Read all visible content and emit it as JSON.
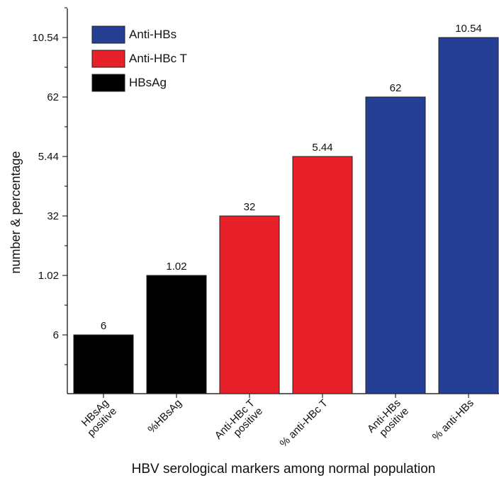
{
  "chart_data": {
    "type": "bar",
    "x_label": "HBV serological markers among normal population",
    "y_label": "number & percentage",
    "categories": [
      "HBsAg\npositive",
      "%HBsAg",
      "Anti-HBc T\npositive",
      "% anti-HBc T",
      "Anti-HBs\npositive",
      "% anti-HBs"
    ],
    "ycategories": [
      "6",
      "1.02",
      "32",
      "5.44",
      "62",
      "10.54"
    ],
    "series": [
      {
        "name": "HBsAg",
        "color": "#000000",
        "values": [
          6,
          1.02,
          null,
          null,
          null,
          null
        ]
      },
      {
        "name": "Anti-HBc T",
        "color": "#e8202a",
        "values": [
          null,
          null,
          32,
          5.44,
          null,
          null
        ]
      },
      {
        "name": "Anti-HBs",
        "color": "#243f93",
        "values": [
          null,
          null,
          null,
          null,
          62,
          10.54
        ]
      }
    ]
  }
}
